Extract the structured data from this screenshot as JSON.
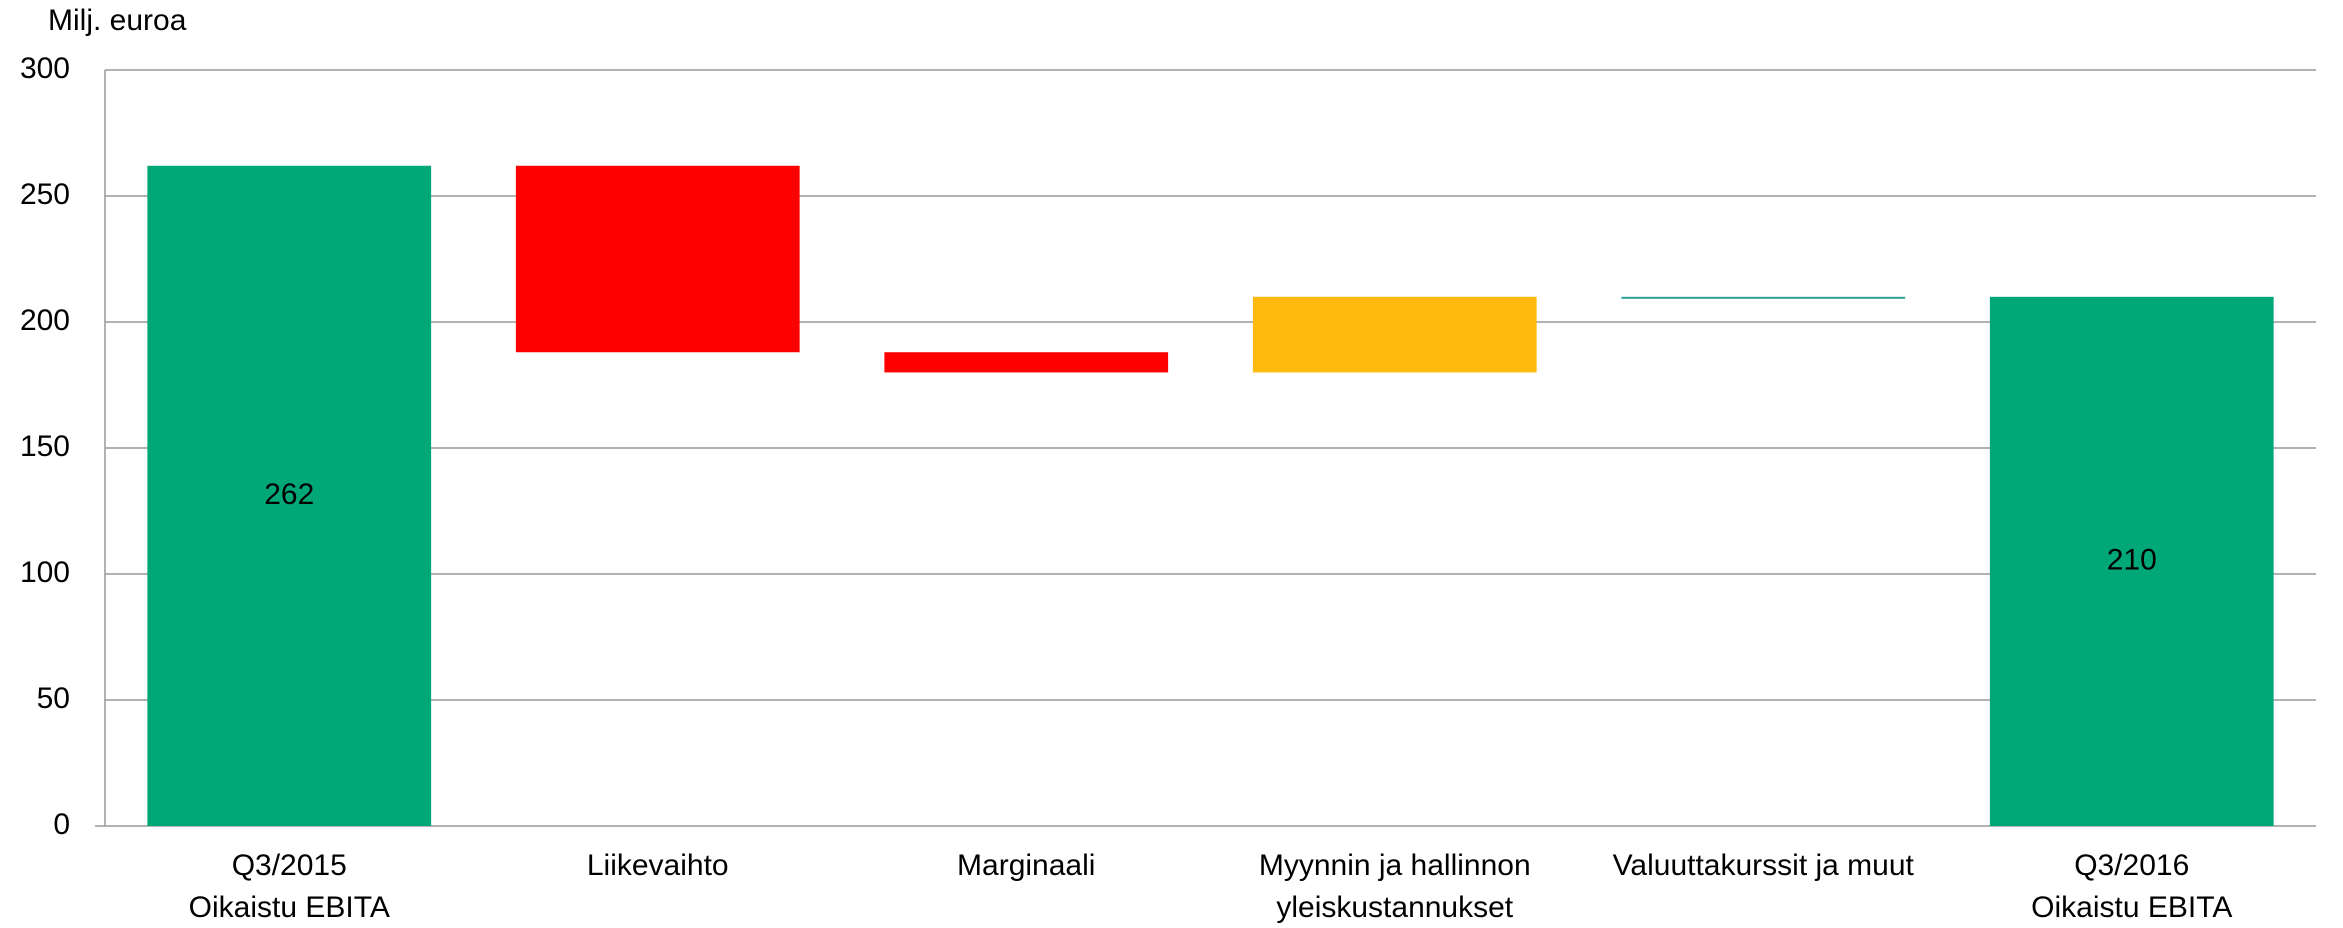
{
  "chart_data": {
    "type": "waterfall",
    "axis_unit_label": "Milj. euroa",
    "categories": [
      [
        "Q3/2015",
        "Oikaistu EBITA"
      ],
      [
        "Liikevaihto"
      ],
      [
        "Marginaali"
      ],
      [
        "Myynnin ja hallinnon",
        "yleiskustannukset"
      ],
      [
        "Valuuttakurssit ja muut"
      ],
      [
        "Q3/2016",
        "Oikaistu EBITA"
      ]
    ],
    "kinds": [
      "total",
      "delta",
      "delta",
      "delta",
      "delta",
      "total"
    ],
    "values": [
      262,
      -74,
      -8,
      30,
      0,
      210
    ],
    "colors": [
      "#00a878",
      "#ff0000",
      "#ff0000",
      "#ffb90f",
      "#2aa198",
      "#00a878"
    ],
    "labeled": [
      true,
      false,
      false,
      false,
      false,
      true
    ],
    "ylim": [
      0,
      300
    ],
    "yticks": [
      0,
      50,
      100,
      150,
      200,
      250,
      300
    ],
    "grid": true
  }
}
